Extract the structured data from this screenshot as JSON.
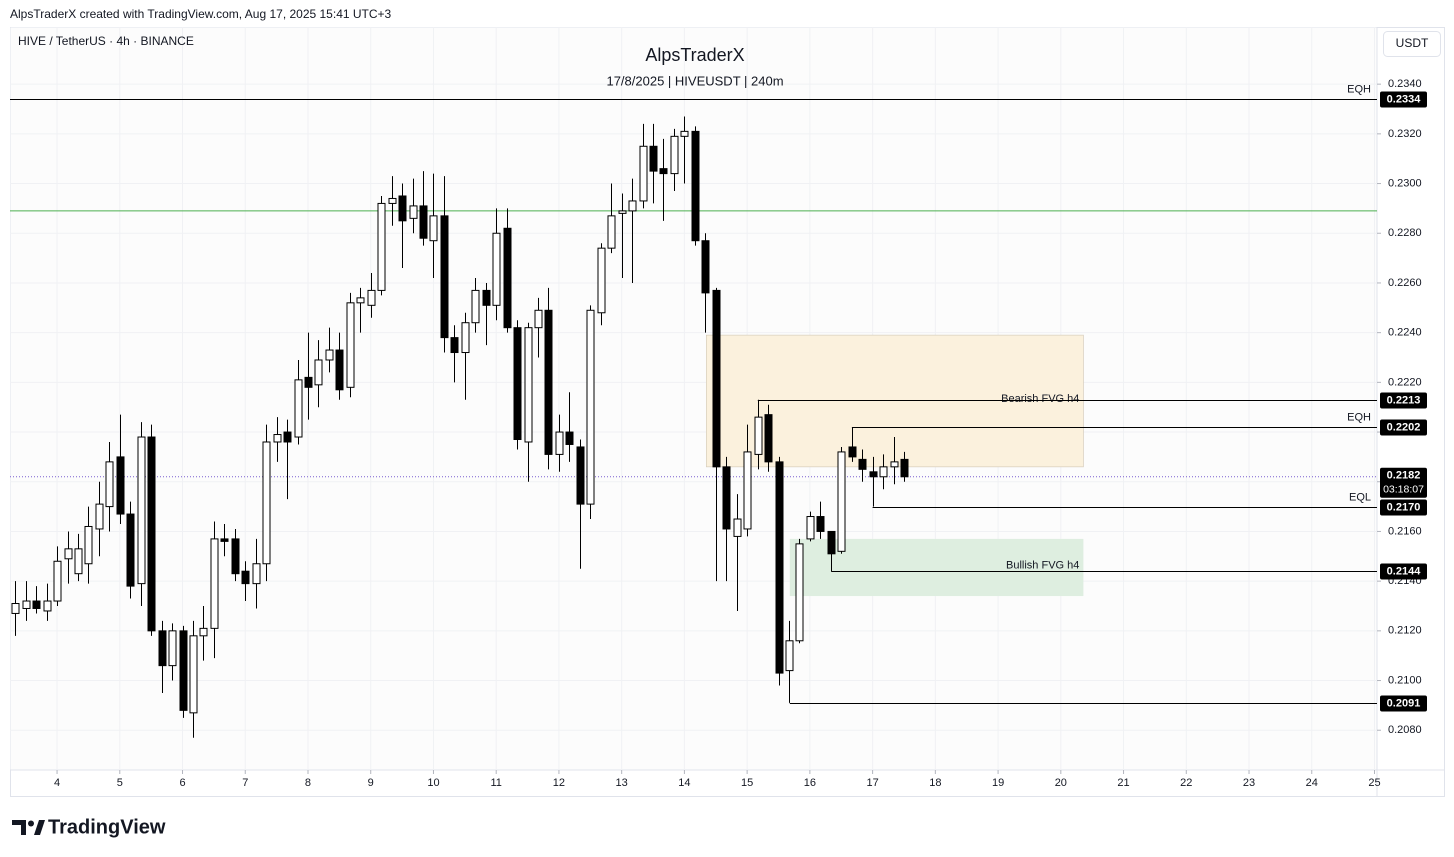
{
  "header": {
    "attribution": "AlpsTraderX created with TradingView.com, Aug 17, 2025 15:41 UTC+3",
    "logo": "TradingView"
  },
  "chart_data": {
    "type": "candlestick",
    "title": "AlpsTraderX",
    "subtitle": "17/8/2025 | HIVEUSDT | 240m",
    "symbol": "HIVE / TetherUS · 4h · BINANCE",
    "currency": "USDT",
    "xlim": [
      3.25,
      25.04
    ],
    "ylim": [
      0.2064,
      0.2363
    ],
    "xticks": [
      4,
      5,
      6,
      7,
      8,
      9,
      10,
      11,
      12,
      13,
      14,
      15,
      16,
      17,
      18,
      19,
      20,
      21,
      22,
      23,
      24,
      25
    ],
    "yticks": [
      {
        "value": 0.208,
        "label": "0.2080"
      },
      {
        "value": 0.21,
        "label": "0.2100"
      },
      {
        "value": 0.212,
        "label": "0.2120"
      },
      {
        "value": 0.214,
        "label": "0.2140"
      },
      {
        "value": 0.216,
        "label": "0.2160"
      },
      {
        "value": 0.218,
        "label": "0.2180"
      },
      {
        "value": 0.22,
        "label": "0.2200"
      },
      {
        "value": 0.222,
        "label": "0.2220"
      },
      {
        "value": 0.224,
        "label": "0.2240"
      },
      {
        "value": 0.226,
        "label": "0.2260"
      },
      {
        "value": 0.228,
        "label": "0.2280"
      },
      {
        "value": 0.23,
        "label": "0.2300"
      },
      {
        "value": 0.232,
        "label": "0.2320"
      },
      {
        "value": 0.234,
        "label": "0.2340"
      }
    ],
    "grid": true,
    "up_color": "#ffffff",
    "down_color": "#000000",
    "x": [
      3.3333,
      3.5,
      3.6667,
      3.8333,
      4,
      4.1667,
      4.3333,
      4.5,
      4.6667,
      4.8333,
      5,
      5.1667,
      5.3333,
      5.5,
      5.6667,
      5.8333,
      6,
      6.1667,
      6.3333,
      6.5,
      6.6667,
      6.8333,
      7,
      7.1667,
      7.3333,
      7.5,
      7.6667,
      7.8333,
      8,
      8.1667,
      8.3333,
      8.5,
      8.6667,
      8.8333,
      9,
      9.1667,
      9.3333,
      9.5,
      9.6667,
      9.8333,
      10,
      10.1667,
      10.3333,
      10.5,
      10.6667,
      10.8333,
      11,
      11.1667,
      11.3333,
      11.5,
      11.6667,
      11.8333,
      12,
      12.1667,
      12.3333,
      12.5,
      12.6667,
      12.8333,
      13,
      13.1667,
      13.3333,
      13.5,
      13.6667,
      13.8333,
      14,
      14.1667,
      14.3333,
      14.5,
      14.6667,
      14.8333,
      15,
      15.1667,
      15.3333,
      15.5,
      15.6667,
      15.8333,
      16,
      16.1667,
      16.3333,
      16.5,
      16.6667,
      16.8333,
      17,
      17.1667,
      17.3333,
      17.5
    ],
    "open": [
      0.2127,
      0.2129,
      0.2132,
      0.2128,
      0.2132,
      0.2149,
      0.2143,
      0.2147,
      0.2161,
      0.217,
      0.219,
      0.2167,
      0.2139,
      0.2198,
      0.212,
      0.2106,
      0.212,
      0.2087,
      0.2118,
      0.2121,
      0.2157,
      0.2157,
      0.2144,
      0.2139,
      0.2147,
      0.2196,
      0.22,
      0.2198,
      0.2222,
      0.2219,
      0.2229,
      0.2233,
      0.2218,
      0.2252,
      0.2251,
      0.2257,
      0.2292,
      0.2295,
      0.2286,
      0.2291,
      0.2277,
      0.2287,
      0.2238,
      0.2232,
      0.2244,
      0.2257,
      0.2251,
      0.2282,
      0.2242,
      0.2196,
      0.2242,
      0.2249,
      0.2191,
      0.22,
      0.2194,
      0.2171,
      0.2248,
      0.2274,
      0.2288,
      0.2289,
      0.2293,
      0.2315,
      0.2306,
      0.2304,
      0.2319,
      0.2321,
      0.2277,
      0.2257,
      0.2186,
      0.2158,
      0.2161,
      0.2191,
      0.2207,
      0.2188,
      0.2104,
      0.2116,
      0.2157,
      0.2166,
      0.216,
      0.2152,
      0.2194,
      0.2189,
      0.2184,
      0.2182,
      0.2186,
      0.2189
    ],
    "high": [
      0.214,
      0.214,
      0.2138,
      0.2139,
      0.2154,
      0.216,
      0.2159,
      0.217,
      0.218,
      0.2196,
      0.2207,
      0.2172,
      0.2204,
      0.2203,
      0.2124,
      0.2123,
      0.2122,
      0.2124,
      0.213,
      0.2164,
      0.2163,
      0.2161,
      0.2148,
      0.2157,
      0.2203,
      0.2206,
      0.2205,
      0.2229,
      0.224,
      0.2237,
      0.2242,
      0.224,
      0.2256,
      0.2258,
      0.2264,
      0.2295,
      0.2303,
      0.23,
      0.2302,
      0.2305,
      0.2304,
      0.2303,
      0.2243,
      0.2248,
      0.2262,
      0.226,
      0.229,
      0.229,
      0.2245,
      0.2244,
      0.2254,
      0.2258,
      0.2207,
      0.2216,
      0.2197,
      0.2251,
      0.2276,
      0.23,
      0.2296,
      0.2302,
      0.2324,
      0.2324,
      0.2318,
      0.2322,
      0.2327,
      0.2323,
      0.228,
      0.2258,
      0.219,
      0.2175,
      0.2203,
      0.2213,
      0.2211,
      0.219,
      0.2124,
      0.2157,
      0.2168,
      0.2172,
      0.216,
      0.2194,
      0.2202,
      0.2193,
      0.219,
      0.2191,
      0.2198,
      0.2192
    ],
    "low": [
      0.2118,
      0.2124,
      0.2127,
      0.2124,
      0.213,
      0.2139,
      0.214,
      0.2139,
      0.215,
      0.216,
      0.2163,
      0.2133,
      0.213,
      0.2118,
      0.2095,
      0.21,
      0.2085,
      0.2077,
      0.2108,
      0.2109,
      0.215,
      0.214,
      0.2132,
      0.2129,
      0.214,
      0.2188,
      0.2173,
      0.2195,
      0.2205,
      0.221,
      0.2224,
      0.2213,
      0.2214,
      0.224,
      0.2246,
      0.2255,
      0.2283,
      0.2266,
      0.228,
      0.2275,
      0.2262,
      0.2232,
      0.222,
      0.2213,
      0.224,
      0.2235,
      0.2245,
      0.224,
      0.2193,
      0.218,
      0.223,
      0.2185,
      0.2184,
      0.2188,
      0.2145,
      0.2165,
      0.2243,
      0.2272,
      0.2262,
      0.226,
      0.229,
      0.2292,
      0.2285,
      0.2297,
      0.23,
      0.2275,
      0.224,
      0.214,
      0.214,
      0.2128,
      0.2158,
      0.2185,
      0.2184,
      0.2098,
      0.2091,
      0.2115,
      0.2156,
      0.2157,
      0.2144,
      0.2151,
      0.2188,
      0.218,
      0.217,
      0.2177,
      0.2179,
      0.218
    ],
    "close": [
      0.2131,
      0.2132,
      0.2129,
      0.2132,
      0.2148,
      0.2153,
      0.2153,
      0.2162,
      0.2171,
      0.2188,
      0.2167,
      0.2138,
      0.2198,
      0.212,
      0.2106,
      0.212,
      0.2088,
      0.2118,
      0.2121,
      0.2157,
      0.2156,
      0.2143,
      0.2139,
      0.2147,
      0.2196,
      0.2199,
      0.2196,
      0.2221,
      0.2218,
      0.2229,
      0.2233,
      0.2217,
      0.2252,
      0.2254,
      0.2257,
      0.2292,
      0.2294,
      0.2285,
      0.2291,
      0.2278,
      0.2287,
      0.2238,
      0.2232,
      0.2244,
      0.2257,
      0.2251,
      0.228,
      0.2242,
      0.2197,
      0.2242,
      0.2249,
      0.2191,
      0.22,
      0.2195,
      0.2171,
      0.2249,
      0.2274,
      0.2287,
      0.2289,
      0.2293,
      0.2315,
      0.2305,
      0.2304,
      0.2319,
      0.2321,
      0.2277,
      0.2256,
      0.2186,
      0.2161,
      0.2165,
      0.2192,
      0.2206,
      0.2188,
      0.2103,
      0.2116,
      0.2155,
      0.2166,
      0.216,
      0.2151,
      0.2192,
      0.219,
      0.2185,
      0.2182,
      0.2186,
      0.2188,
      0.2182
    ],
    "zones": [
      {
        "label": "Bearish FVG h4",
        "top": 0.2239,
        "bottom": 0.2186,
        "from": 14.35,
        "to": 20.36,
        "color": "#fbf1dd"
      },
      {
        "label": "Bullish FVG h4",
        "top": 0.2157,
        "bottom": 0.2134,
        "from": 15.68,
        "to": 20.36,
        "color": "#deeee0"
      }
    ],
    "lines": [
      {
        "value": 0.2289,
        "color": "#4caf50"
      }
    ],
    "levels": [
      {
        "label": "EQH",
        "value": 0.2334,
        "from": 3.25
      },
      {
        "value": 0.2213,
        "from": 15.17
      },
      {
        "label": "EQH",
        "value": 0.2202,
        "from": 16.67
      },
      {
        "label": "EQL",
        "value": 0.217,
        "value_label": "0.2170",
        "from": 17.0
      },
      {
        "value": 0.2144,
        "from": 16.34
      },
      {
        "value": 0.2091,
        "from": 15.68
      }
    ],
    "last_price": 0.2182,
    "countdown": "03:18:07",
    "last_color": "#7a5fd0"
  }
}
